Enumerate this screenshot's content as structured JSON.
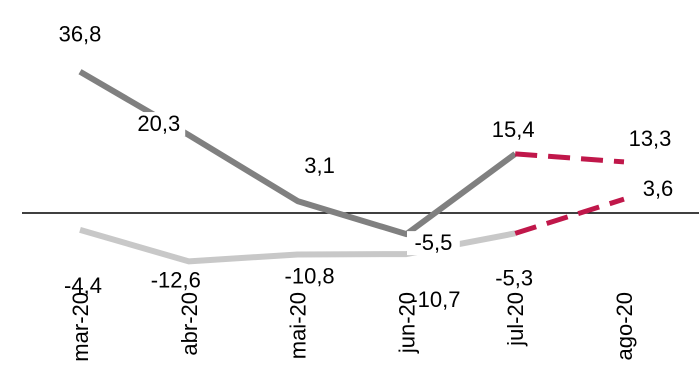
{
  "chart_data": {
    "type": "line",
    "categories": [
      "mar-20",
      "abr-20",
      "mai-20",
      "jun-20",
      "jul-20",
      "ago-20"
    ],
    "title": "",
    "xlabel": "",
    "ylabel": "",
    "ylim": [
      -14,
      40
    ],
    "grid": false,
    "legend": "none",
    "zero_line": true,
    "series": [
      {
        "values": [
          36.8,
          20.3,
          3.1,
          -5.5,
          15.4,
          13.3
        ],
        "labels": [
          "36,8",
          "20,3",
          "3,1",
          "-5,5",
          "15,4",
          "13,3"
        ],
        "color": "#808080",
        "dashed_from_index": 4,
        "dash_color": "#C0174A"
      },
      {
        "values": [
          -4.4,
          -12.6,
          -10.8,
          -10.7,
          -5.3,
          3.6
        ],
        "labels": [
          "-4,4",
          "-12,6",
          "-10,8",
          "-10,7",
          "-5,3",
          "3,6"
        ],
        "color": "#C8C8C8",
        "dashed_from_index": 4,
        "dash_color": "#C0174A"
      }
    ]
  }
}
